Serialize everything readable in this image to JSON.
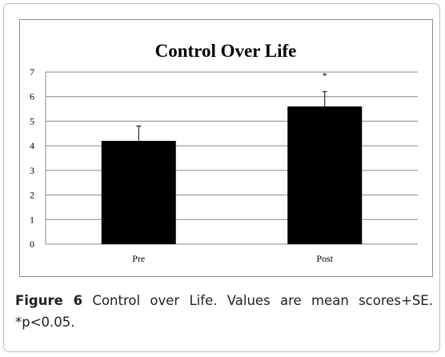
{
  "chart_data": {
    "type": "bar",
    "title": "Control Over Life",
    "categories": [
      "Pre",
      "Post"
    ],
    "values": [
      4.2,
      5.6
    ],
    "error": [
      0.6,
      0.6
    ],
    "annotations": [
      "",
      "*"
    ],
    "ylim": [
      0,
      7
    ],
    "yticks": [
      0,
      1,
      2,
      3,
      4,
      5,
      6,
      7
    ],
    "xlabel": "",
    "ylabel": "",
    "grid": true,
    "legend": "none",
    "bar_color": "#000000"
  },
  "caption": {
    "label": "Figure 6",
    "text": "Control over Life. Values are mean scores+SE. *p<0.05."
  }
}
